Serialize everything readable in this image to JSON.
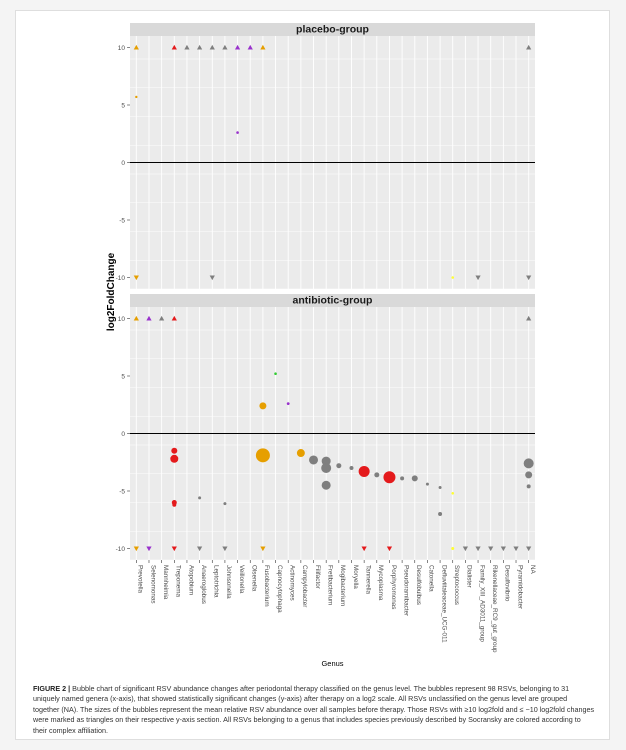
{
  "chart_data": {
    "type": "scatter",
    "subtype": "bubble",
    "y_axis_label": "log2FoldChange",
    "x_axis_label": "Genus",
    "y_ticks": [
      -10,
      -5,
      0,
      5,
      10
    ],
    "y_tick_labels": [
      "-10",
      "-5",
      "0",
      "5",
      "10"
    ],
    "ylim": [
      -11,
      11
    ],
    "genera": [
      "Prevotella",
      "Selenomonas",
      "Mannheimia",
      "Treponema",
      "Atopobium",
      "Anaeroglobus",
      "Leptotrichia",
      "Johnsonella",
      "Veillonella",
      "Olsenella",
      "Fusobacterium",
      "Capnocytophaga",
      "Actinomyces",
      "Campylobacter",
      "Filifactor",
      "Fretibacterium",
      "Mogibacterium",
      "Moryella",
      "Tannerella",
      "Mycoplasma",
      "Porphyromonas",
      "Pseudoramibacter",
      "Desulfobulbus",
      "Catonella",
      "Defluviitaleaceae_UCG-011",
      "Streptococcus",
      "Dialister",
      "Family_XIII_AD3011_group",
      "Rikenellaceae_RC9_gut_group",
      "Desulfovibrio",
      "Pyramidobacter",
      "NA"
    ],
    "panels": [
      {
        "title": "placebo-group",
        "points": [
          {
            "genus": "Prevotella",
            "y": 10,
            "shape": "triangle-up",
            "color": "#E69F00"
          },
          {
            "genus": "Prevotella",
            "y": 5.7,
            "shape": "circle",
            "size": 1.2,
            "color": "#E69F00"
          },
          {
            "genus": "Prevotella",
            "y": -10,
            "shape": "triangle-down",
            "color": "#E69F00"
          },
          {
            "genus": "Treponema",
            "y": 10,
            "shape": "triangle-up",
            "color": "#E41A1C"
          },
          {
            "genus": "Atopobium",
            "y": 10,
            "shape": "triangle-up",
            "color": "#7F7F7F"
          },
          {
            "genus": "Anaeroglobus",
            "y": 10,
            "shape": "triangle-up",
            "color": "#7F7F7F"
          },
          {
            "genus": "Leptotrichia",
            "y": 10,
            "shape": "triangle-up",
            "color": "#7F7F7F"
          },
          {
            "genus": "Leptotrichia",
            "y": -10,
            "shape": "triangle-down",
            "color": "#7F7F7F"
          },
          {
            "genus": "Johnsonella",
            "y": 10,
            "shape": "triangle-up",
            "color": "#7F7F7F"
          },
          {
            "genus": "Veillonella",
            "y": 10,
            "shape": "triangle-up",
            "color": "#9932CC"
          },
          {
            "genus": "Veillonella",
            "y": 2.6,
            "shape": "circle",
            "size": 1.3,
            "color": "#9932CC"
          },
          {
            "genus": "Olsenella",
            "y": 10,
            "shape": "triangle-up",
            "color": "#9932CC"
          },
          {
            "genus": "Fusobacterium",
            "y": 10,
            "shape": "triangle-up",
            "color": "#E69F00"
          },
          {
            "genus": "Streptococcus",
            "y": -10,
            "shape": "circle",
            "size": 1.3,
            "color": "#FFFF33"
          },
          {
            "genus": "Family_XIII_AD3011_group",
            "y": -10,
            "shape": "triangle-down",
            "color": "#7F7F7F"
          },
          {
            "genus": "NA",
            "y": 10,
            "shape": "triangle-up",
            "color": "#7F7F7F"
          },
          {
            "genus": "NA",
            "y": -10,
            "shape": "triangle-down",
            "color": "#7F7F7F"
          }
        ]
      },
      {
        "title": "antibiotic-group",
        "points": [
          {
            "genus": "Prevotella",
            "y": 10,
            "shape": "triangle-up",
            "color": "#E69F00"
          },
          {
            "genus": "Prevotella",
            "y": -10,
            "shape": "triangle-down",
            "color": "#E69F00"
          },
          {
            "genus": "Selenomonas",
            "y": 10,
            "shape": "triangle-up",
            "color": "#9932CC"
          },
          {
            "genus": "Selenomonas",
            "y": -10,
            "shape": "triangle-down",
            "color": "#9932CC"
          },
          {
            "genus": "Mannheimia",
            "y": 10,
            "shape": "triangle-up",
            "color": "#7F7F7F"
          },
          {
            "genus": "Treponema",
            "y": 10,
            "shape": "triangle-up",
            "color": "#E41A1C"
          },
          {
            "genus": "Treponema",
            "y": -1.5,
            "shape": "circle",
            "size": 3.0,
            "color": "#E41A1C"
          },
          {
            "genus": "Treponema",
            "y": -2.2,
            "shape": "circle",
            "size": 4.0,
            "color": "#E41A1C"
          },
          {
            "genus": "Treponema",
            "y": -6.0,
            "shape": "circle",
            "size": 2.5,
            "color": "#E41A1C"
          },
          {
            "genus": "Treponema",
            "y": -6.2,
            "shape": "circle",
            "size": 2.0,
            "color": "#E41A1C"
          },
          {
            "genus": "Treponema",
            "y": -10,
            "shape": "triangle-down",
            "color": "#E41A1C"
          },
          {
            "genus": "Anaeroglobus",
            "y": -5.6,
            "shape": "circle",
            "size": 1.5,
            "color": "#7F7F7F"
          },
          {
            "genus": "Anaeroglobus",
            "y": -10,
            "shape": "triangle-down",
            "color": "#7F7F7F"
          },
          {
            "genus": "Johnsonella",
            "y": -6.1,
            "shape": "circle",
            "size": 1.5,
            "color": "#7F7F7F"
          },
          {
            "genus": "Johnsonella",
            "y": -10,
            "shape": "triangle-down",
            "color": "#7F7F7F"
          },
          {
            "genus": "Fusobacterium",
            "y": 2.4,
            "shape": "circle",
            "size": 3.5,
            "color": "#E69F00"
          },
          {
            "genus": "Fusobacterium",
            "y": -1.9,
            "shape": "circle",
            "size": 7.0,
            "color": "#E69F00"
          },
          {
            "genus": "Fusobacterium",
            "y": -10,
            "shape": "triangle-down",
            "color": "#E69F00"
          },
          {
            "genus": "Capnocytophaga",
            "y": 5.2,
            "shape": "circle",
            "size": 1.3,
            "color": "#33CC33"
          },
          {
            "genus": "Actinomyces",
            "y": 2.6,
            "shape": "circle",
            "size": 1.4,
            "color": "#9932CC"
          },
          {
            "genus": "Campylobacter",
            "y": -1.7,
            "shape": "circle",
            "size": 4.0,
            "color": "#E69F00"
          },
          {
            "genus": "Filifactor",
            "y": -2.3,
            "shape": "circle",
            "size": 4.5,
            "color": "#7F7F7F"
          },
          {
            "genus": "Fretibacterium",
            "y": -2.4,
            "shape": "circle",
            "size": 4.5,
            "color": "#7F7F7F"
          },
          {
            "genus": "Fretibacterium",
            "y": -3.0,
            "shape": "circle",
            "size": 5.0,
            "color": "#7F7F7F"
          },
          {
            "genus": "Fretibacterium",
            "y": -4.5,
            "shape": "circle",
            "size": 4.5,
            "color": "#7F7F7F"
          },
          {
            "genus": "Mogibacterium",
            "y": -2.8,
            "shape": "circle",
            "size": 2.5,
            "color": "#7F7F7F"
          },
          {
            "genus": "Moryella",
            "y": -3.0,
            "shape": "circle",
            "size": 2.0,
            "color": "#7F7F7F"
          },
          {
            "genus": "Tannerella",
            "y": -3.3,
            "shape": "circle",
            "size": 5.5,
            "color": "#E41A1C"
          },
          {
            "genus": "Tannerella",
            "y": -10,
            "shape": "triangle-down",
            "color": "#E41A1C"
          },
          {
            "genus": "Mycoplasma",
            "y": -3.6,
            "shape": "circle",
            "size": 2.5,
            "color": "#7F7F7F"
          },
          {
            "genus": "Porphyromonas",
            "y": -3.8,
            "shape": "circle",
            "size": 6.0,
            "color": "#E41A1C"
          },
          {
            "genus": "Porphyromonas",
            "y": -10,
            "shape": "triangle-down",
            "color": "#E41A1C"
          },
          {
            "genus": "Pseudoramibacter",
            "y": -3.9,
            "shape": "circle",
            "size": 2.0,
            "color": "#7F7F7F"
          },
          {
            "genus": "Desulfobulbus",
            "y": -3.9,
            "shape": "circle",
            "size": 3.0,
            "color": "#7F7F7F"
          },
          {
            "genus": "Catonella",
            "y": -4.4,
            "shape": "circle",
            "size": 1.5,
            "color": "#7F7F7F"
          },
          {
            "genus": "Defluviitaleaceae_UCG-011",
            "y": -4.7,
            "shape": "circle",
            "size": 1.5,
            "color": "#7F7F7F"
          },
          {
            "genus": "Defluviitaleaceae_UCG-011",
            "y": -7.0,
            "shape": "circle",
            "size": 2.0,
            "color": "#7F7F7F"
          },
          {
            "genus": "Streptococcus",
            "y": -5.2,
            "shape": "circle",
            "size": 1.3,
            "color": "#FFFF33"
          },
          {
            "genus": "Streptococcus",
            "y": -10,
            "shape": "circle",
            "size": 1.5,
            "color": "#FFFF33"
          },
          {
            "genus": "Dialister",
            "y": -10,
            "shape": "triangle-down",
            "color": "#7F7F7F"
          },
          {
            "genus": "Family_XIII_AD3011_group",
            "y": -10,
            "shape": "triangle-down",
            "color": "#7F7F7F"
          },
          {
            "genus": "Rikenellaceae_RC9_gut_group",
            "y": -10,
            "shape": "triangle-down",
            "color": "#7F7F7F"
          },
          {
            "genus": "Desulfovibrio",
            "y": -10,
            "shape": "triangle-down",
            "color": "#7F7F7F"
          },
          {
            "genus": "Pyramidobacter",
            "y": -10,
            "shape": "triangle-down",
            "color": "#7F7F7F"
          },
          {
            "genus": "NA",
            "y": 10,
            "shape": "triangle-up",
            "color": "#7F7F7F"
          },
          {
            "genus": "NA",
            "y": -2.6,
            "shape": "circle",
            "size": 5.0,
            "color": "#7F7F7F"
          },
          {
            "genus": "NA",
            "y": -3.6,
            "shape": "circle",
            "size": 3.5,
            "color": "#7F7F7F"
          },
          {
            "genus": "NA",
            "y": -4.6,
            "shape": "circle",
            "size": 2.0,
            "color": "#7F7F7F"
          },
          {
            "genus": "NA",
            "y": -10,
            "shape": "triangle-down",
            "color": "#7F7F7F"
          }
        ]
      }
    ]
  },
  "caption": {
    "label": "FIGURE 2 |",
    "text": "Bubble chart of significant RSV abundance changes after periodontal therapy classified on the genus level. The bubbles represent 98 RSVs, belonging to 31 uniquely named genera (x-axis), that showed statistically significant changes (y-axis) after therapy on a log2 scale. All RSVs unclassified on the genus level are grouped together (NA). The sizes of the bubbles represent the mean relative RSV abundance over all samples before therapy. Those RSVs with ≥10 log2fold and ≤ −10 log2fold changes were marked as triangles on their respective y-axis section. All RSVs belonging to a genus that includes species previously described by Socransky are colored according to their complex affiliation."
  }
}
